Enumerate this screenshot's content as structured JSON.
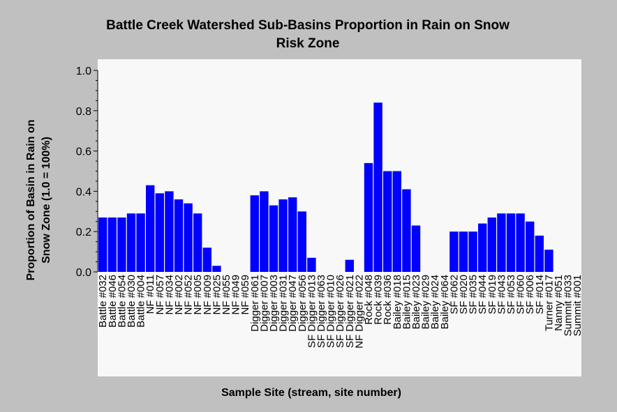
{
  "chart_data": {
    "type": "bar",
    "title": "Battle Creek Watershed Sub-Basins Proportion in Rain on Snow Risk Zone",
    "title_lines": [
      "Battle Creek Watershed Sub-Basins Proportion in Rain on Snow",
      "Risk Zone"
    ],
    "xlabel": "Sample Site (stream, site number)",
    "ylabel": "Proportion of Basin in Rain on Snow Zone (1.0 = 100%)",
    "ylabel_lines": [
      "Proportion of Basin in Rain on",
      "Snow Zone (1.0 = 100%)"
    ],
    "ylim": [
      0,
      1.0
    ],
    "yticks": [
      "0.0",
      "0.2",
      "0.4",
      "0.6",
      "0.8",
      "1.0"
    ],
    "grid": false,
    "bar_color": "#0000ff",
    "plot_background": "#f8f8f8",
    "page_background": "#c0c0c0",
    "categories": [
      "Battle #032",
      "Battle #046",
      "Battle #054",
      "Battle #030",
      "Battle #004",
      "NF #011",
      "NF #057",
      "NF #034",
      "NF #002",
      "NF #052",
      "NF #005",
      "NF #009",
      "NF #025",
      "NF #055",
      "NF #049",
      "NF #059",
      "Digger #061",
      "Digger #007",
      "Digger #003",
      "Digger #031",
      "Digger #047",
      "Digger #056",
      "SF Digger #013",
      "SF Digger #063",
      "SF Digger #010",
      "SF Digger #026",
      "SF Digger #021",
      "NF Digger #022",
      "Rock #048",
      "Rock #039",
      "Rock #036",
      "Bailey #018",
      "Bailey #015",
      "Bailey #023",
      "Bailey #029",
      "Bailey #024",
      "Bailey #064",
      "SF #062",
      "SF #020",
      "SF #035",
      "SF #044",
      "SF #019",
      "SF #043",
      "SF #053",
      "SF #060",
      "SF #006",
      "SF #014",
      "Turner #017",
      "Nanny #051",
      "Summit #033",
      "Summit #001"
    ],
    "values": [
      0.27,
      0.27,
      0.27,
      0.29,
      0.29,
      0.43,
      0.39,
      0.4,
      0.36,
      0.34,
      0.29,
      0.12,
      0.03,
      0,
      0,
      0,
      0.38,
      0.4,
      0.33,
      0.36,
      0.37,
      0.3,
      0.07,
      0,
      0,
      0,
      0.06,
      0,
      0.54,
      0.84,
      0.5,
      0.5,
      0.41,
      0.23,
      0,
      0,
      0,
      0.2,
      0.2,
      0.2,
      0.24,
      0.27,
      0.29,
      0.29,
      0.29,
      0.25,
      0.18,
      0.11,
      0,
      0,
      0
    ]
  }
}
